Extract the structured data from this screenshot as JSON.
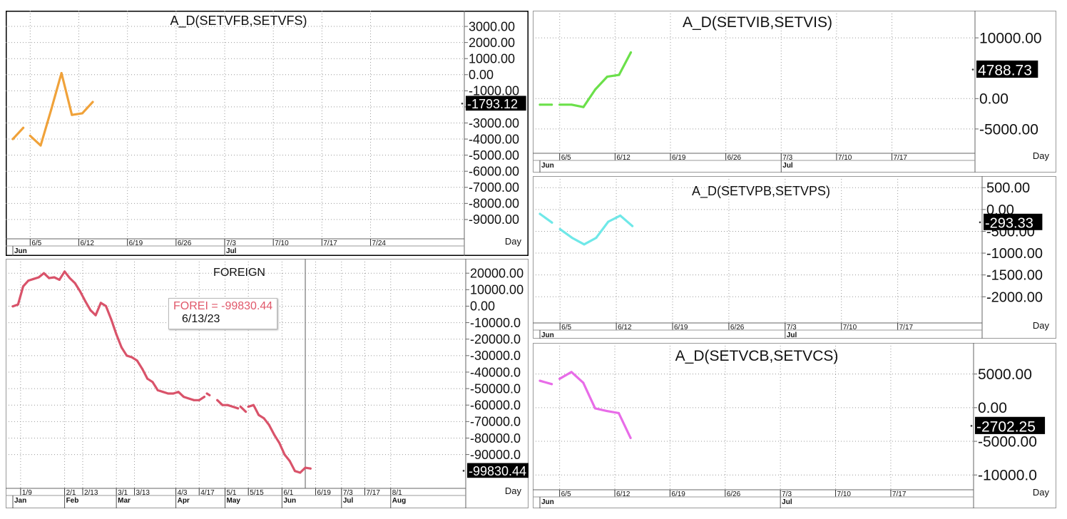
{
  "chart_data": [
    {
      "id": "p1",
      "type": "line",
      "title": "A_D(SETVFB,SETVFS)",
      "series": [
        {
          "color": "#f0a23a",
          "segments": [
            [
              [
                0,
                -4000
              ],
              [
                3,
                -3300
              ]
            ],
            [
              [
                5,
                -3800
              ],
              [
                8,
                -4400
              ],
              [
                11,
                -2200
              ],
              [
                14,
                100
              ],
              [
                17,
                -2500
              ],
              [
                20,
                -2400
              ],
              [
                23,
                -1700
              ]
            ]
          ]
        }
      ],
      "ylim": [
        -10200,
        3800
      ],
      "yticks": [
        3000,
        2000,
        1000,
        0,
        -1000,
        -2000,
        -3000,
        -4000,
        -5000,
        -6000,
        -7000,
        -8000,
        -9000
      ],
      "ytick_labels": [
        "3000.00",
        "2000.00",
        "1000.00",
        "0.00",
        "-1000.00",
        "",
        "-3000.00",
        "-4000.00",
        "-5000.00",
        "-6000.00",
        "-7000.00",
        "-8000.00",
        "-9000.00"
      ],
      "last_value": -1793.12,
      "last_label": "-1793.12",
      "xlim": [
        0,
        130
      ],
      "xticks": [
        {
          "x": 5,
          "label": "6/5"
        },
        {
          "x": 19,
          "label": "6/12"
        },
        {
          "x": 33,
          "label": "6/19"
        },
        {
          "x": 47,
          "label": "6/26"
        },
        {
          "x": 61,
          "label": "7/3"
        },
        {
          "x": 75,
          "label": "7/10"
        },
        {
          "x": 89,
          "label": "7/17"
        },
        {
          "x": 103,
          "label": "7/24"
        }
      ],
      "xgroups": [
        {
          "x": 0,
          "label": "Jun"
        },
        {
          "x": 61,
          "label": "Jul"
        }
      ],
      "period_label": "Day",
      "grid": true
    },
    {
      "id": "p2",
      "type": "line",
      "title": "A_D(SETVIB,SETVIS)",
      "series": [
        {
          "color": "#6be04a",
          "segments": [
            [
              [
                0,
                -1000
              ],
              [
                3,
                -1000
              ]
            ],
            [
              [
                5,
                -1000
              ],
              [
                8,
                -1000
              ],
              [
                11,
                -1400
              ],
              [
                14,
                1500
              ],
              [
                17,
                3600
              ],
              [
                20,
                3900
              ],
              [
                23,
                7600
              ]
            ]
          ]
        }
      ],
      "ylim": [
        -9000,
        14000
      ],
      "yticks": [
        10000,
        0,
        -5000
      ],
      "ytick_labels": [
        "10000.00",
        "0.00",
        "-5000.00"
      ],
      "last_value": 4788.73,
      "last_label": "4788.73",
      "xlim": [
        0,
        110
      ],
      "xticks": [
        {
          "x": 5,
          "label": "6/5"
        },
        {
          "x": 19,
          "label": "6/12"
        },
        {
          "x": 33,
          "label": "6/19"
        },
        {
          "x": 47,
          "label": "6/26"
        },
        {
          "x": 61,
          "label": "7/3"
        },
        {
          "x": 75,
          "label": "7/10"
        },
        {
          "x": 89,
          "label": "7/17"
        }
      ],
      "xgroups": [
        {
          "x": 0,
          "label": "Jun"
        },
        {
          "x": 61,
          "label": "Jul"
        }
      ],
      "period_label": "Day",
      "grid": true
    },
    {
      "id": "p3",
      "type": "line",
      "title": "A_D(SETVPB,SETVPS)",
      "series": [
        {
          "color": "#6fe8e8",
          "segments": [
            [
              [
                0,
                -100
              ],
              [
                3,
                -300
              ]
            ],
            [
              [
                5,
                -450
              ],
              [
                8,
                -650
              ],
              [
                11,
                -800
              ],
              [
                14,
                -650
              ],
              [
                17,
                -280
              ],
              [
                20,
                -140
              ],
              [
                23,
                -380
              ]
            ]
          ]
        }
      ],
      "ylim": [
        -2600,
        700
      ],
      "yticks": [
        500,
        0,
        -500,
        -1000,
        -1500,
        -2000
      ],
      "ytick_labels": [
        "500.00",
        "0.00",
        "-500.00",
        "-1000.00",
        "-1500.00",
        "-2000.00"
      ],
      "last_value": -293.33,
      "last_label": "-293.33",
      "xlim": [
        0,
        110
      ],
      "xticks": [
        {
          "x": 5,
          "label": "6/5"
        },
        {
          "x": 19,
          "label": "6/12"
        },
        {
          "x": 33,
          "label": "6/19"
        },
        {
          "x": 47,
          "label": "6/26"
        },
        {
          "x": 61,
          "label": "7/3"
        },
        {
          "x": 75,
          "label": "7/10"
        },
        {
          "x": 89,
          "label": "7/17"
        }
      ],
      "xgroups": [
        {
          "x": 0,
          "label": "Jun"
        },
        {
          "x": 61,
          "label": "Jul"
        }
      ],
      "period_label": "Day",
      "grid": true
    },
    {
      "id": "p4",
      "type": "line",
      "title": "FOREIGN",
      "series": [
        {
          "color": "#d9536a",
          "segments": [
            [
              [
                0,
                -100
              ],
              [
                2,
                1000
              ],
              [
                4,
                12000
              ],
              [
                6,
                15500
              ],
              [
                8,
                16500
              ],
              [
                10,
                17500
              ],
              [
                12,
                20000
              ],
              [
                14,
                17000
              ],
              [
                16,
                17500
              ],
              [
                18,
                16000
              ],
              [
                20,
                21000
              ],
              [
                22,
                17000
              ],
              [
                24,
                14000
              ],
              [
                26,
                9000
              ],
              [
                28,
                3000
              ],
              [
                30,
                -2500
              ],
              [
                32,
                -5500
              ],
              [
                34,
                2000
              ],
              [
                36,
                0
              ],
              [
                38,
                -8000
              ],
              [
                40,
                -17000
              ],
              [
                42,
                -25000
              ],
              [
                44,
                -30000
              ],
              [
                46,
                -31000
              ],
              [
                48,
                -33000
              ],
              [
                50,
                -38000
              ],
              [
                52,
                -44000
              ],
              [
                54,
                -46000
              ],
              [
                56,
                -51000
              ],
              [
                58,
                -52000
              ],
              [
                60,
                -53000
              ],
              [
                62,
                -53000
              ],
              [
                64,
                -52000
              ],
              [
                66,
                -55000
              ],
              [
                68,
                -56000
              ],
              [
                70,
                -57000
              ],
              [
                72,
                -57000
              ],
              [
                74,
                -55000
              ]
            ],
            [
              [
                75,
                -53000
              ],
              [
                76,
                -54000
              ]
            ],
            [
              [
                79,
                -57000
              ],
              [
                81,
                -60000
              ],
              [
                83,
                -60000
              ],
              [
                85,
                -61000
              ],
              [
                87,
                -62000
              ]
            ],
            [
              [
                88,
                -61000
              ],
              [
                90,
                -64000
              ]
            ],
            [
              [
                91,
                -61000
              ],
              [
                93,
                -60000
              ],
              [
                95,
                -66000
              ],
              [
                97,
                -68000
              ],
              [
                99,
                -72000
              ],
              [
                101,
                -78000
              ],
              [
                103,
                -83000
              ],
              [
                105,
                -90000
              ],
              [
                107,
                -94000
              ],
              [
                109,
                -100000
              ],
              [
                111,
                -101000
              ],
              [
                113,
                -98000
              ],
              [
                115,
                -98500
              ]
            ]
          ]
        }
      ],
      "ylim": [
        -110500,
        27000
      ],
      "yticks": [
        20000,
        10000,
        0,
        -10000,
        -20000,
        -30000,
        -40000,
        -50000,
        -60000,
        -70000,
        -80000,
        -90000
      ],
      "ytick_labels": [
        "20000.00",
        "10000.00",
        "0.00",
        "-10000.0",
        "-20000.0",
        "-30000.0",
        "-40000.0",
        "-50000.0",
        "-60000.0",
        "-70000.0",
        "-80000.0",
        "-90000.0"
      ],
      "last_value": -99830.44,
      "last_label": "-99830.44",
      "xlim": [
        0,
        175
      ],
      "cursor_x": 113,
      "xticks": [
        {
          "x": 3,
          "label": "1/9"
        },
        {
          "x": 20,
          "label": "2/1"
        },
        {
          "x": 27,
          "label": "2/13"
        },
        {
          "x": 40,
          "label": "3/1"
        },
        {
          "x": 47,
          "label": "3/13"
        },
        {
          "x": 63,
          "label": "4/3"
        },
        {
          "x": 72,
          "label": "4/17"
        },
        {
          "x": 82,
          "label": "5/1"
        },
        {
          "x": 91,
          "label": "5/15"
        },
        {
          "x": 104,
          "label": "6/1"
        },
        {
          "x": 117,
          "label": "6/19"
        },
        {
          "x": 127,
          "label": "7/3"
        },
        {
          "x": 136,
          "label": "7/17"
        },
        {
          "x": 146,
          "label": "8/1"
        }
      ],
      "xgroups": [
        {
          "x": 0,
          "label": "Jan"
        },
        {
          "x": 20,
          "label": "Feb"
        },
        {
          "x": 40,
          "label": "Mar"
        },
        {
          "x": 63,
          "label": "Apr"
        },
        {
          "x": 82,
          "label": "May"
        },
        {
          "x": 104,
          "label": "Jun"
        },
        {
          "x": 127,
          "label": "Jul"
        },
        {
          "x": 146,
          "label": "Aug"
        }
      ],
      "period_label": "Day",
      "grid": true
    },
    {
      "id": "p5",
      "type": "line",
      "title": "A_D(SETVCB,SETVCS)",
      "series": [
        {
          "color": "#e86ce8",
          "segments": [
            [
              [
                0,
                4000
              ],
              [
                3,
                3500
              ]
            ],
            [
              [
                5,
                4300
              ],
              [
                8,
                5300
              ],
              [
                11,
                3700
              ],
              [
                14,
                -100
              ],
              [
                17,
                -500
              ],
              [
                20,
                -800
              ],
              [
                23,
                -4500
              ]
            ]
          ]
        }
      ],
      "ylim": [
        -12200,
        9200
      ],
      "yticks": [
        5000,
        0,
        -5000,
        -10000
      ],
      "ytick_labels": [
        "5000.00",
        "0.00",
        "-5000.00",
        "-10000.0"
      ],
      "last_value": -2702.25,
      "last_label": "-2702.25",
      "xlim": [
        0,
        110
      ],
      "xticks": [
        {
          "x": 5,
          "label": "6/5"
        },
        {
          "x": 19,
          "label": "6/12"
        },
        {
          "x": 33,
          "label": "6/19"
        },
        {
          "x": 47,
          "label": "6/26"
        },
        {
          "x": 61,
          "label": "7/3"
        },
        {
          "x": 75,
          "label": "7/10"
        },
        {
          "x": 89,
          "label": "7/17"
        }
      ],
      "xgroups": [
        {
          "x": 0,
          "label": "Jun"
        },
        {
          "x": 61,
          "label": "Jul"
        }
      ],
      "period_label": "Day",
      "grid": true
    }
  ],
  "tooltip": {
    "value_line": "FOREI  =  -99830.44",
    "date_line": "6/13/23"
  }
}
